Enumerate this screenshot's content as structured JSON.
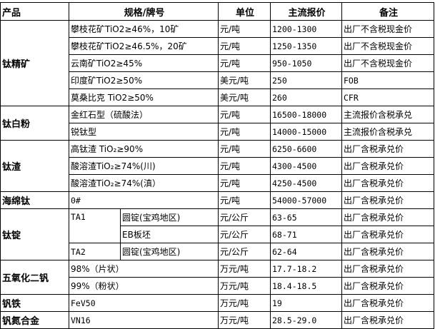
{
  "headers": {
    "product": "产品",
    "spec": "规格/牌号",
    "unit": "单位",
    "price": "主流报价",
    "note": "备注"
  },
  "groups": {
    "titanium_concentrate": {
      "name": "钛精矿",
      "rows": [
        {
          "spec": "攀枝花矿TiO2≥46%，10矿",
          "unit": "元/吨",
          "price": "1200-1300",
          "note": "出厂不含税现金价"
        },
        {
          "spec": "攀枝花矿TiO2≥46.5%，20矿",
          "unit": "元/吨",
          "price": "1250-1350",
          "note": "出厂不含税现金价"
        },
        {
          "spec": "云南矿TiO2≥45%",
          "unit": "元/吨",
          "price": "950-1050",
          "note": "出厂不含税现金价"
        },
        {
          "spec": "印度矿TiO2≥50%",
          "unit": "美元/吨",
          "price": "250",
          "note": "FOB"
        },
        {
          "spec": "莫桑比克 TiO2≥50%",
          "unit": "美元/吨",
          "price": "260",
          "note": "CFR"
        }
      ]
    },
    "titanium_dioxide": {
      "name": "钛白粉",
      "rows": [
        {
          "spec": "金红石型（硫酸法）",
          "unit": "元/吨",
          "price": "16500-18000",
          "note": "主流报价含税承兑"
        },
        {
          "spec": "锐钛型",
          "unit": "元/吨",
          "price": "14000-15000",
          "note": "主流报价含税承兑"
        }
      ]
    },
    "titanium_slag": {
      "name": "钛渣",
      "rows": [
        {
          "spec": "高钛渣 TiO₂≥90%",
          "unit": "元/吨",
          "price": "6250-6600",
          "note": "出厂含税承兑价"
        },
        {
          "spec": "酸溶渣TiO₂≥74%(川)",
          "unit": "元/吨",
          "price": "4300-4500",
          "note": "出厂含税承兑价"
        },
        {
          "spec": "酸溶渣TiO₂≥74%(滇）",
          "unit": "元/吨",
          "price": "4250-4500",
          "note": "出厂含税承兑价"
        }
      ]
    },
    "sponge_titanium": {
      "name": "海绵钛",
      "rows": [
        {
          "spec": "0#",
          "unit": "元/吨",
          "price": "54000-57000",
          "note": "出厂含税承兑价"
        }
      ]
    },
    "titanium_ingot": {
      "name": "钛锭",
      "rows": [
        {
          "grade": "TA1",
          "form": "圆锭(宝鸡地区)",
          "unit": "元/公斤",
          "price": "63-65",
          "note": "出厂含税承兑价"
        },
        {
          "form": "EB板坯",
          "unit": "元/公斤",
          "price": "68-71",
          "note": "出厂含税承兑价"
        },
        {
          "grade": "TA2",
          "form": "圆锭(宝鸡地区)",
          "unit": "元/公斤",
          "price": "62-64",
          "note": "出厂含税承兑价"
        }
      ]
    },
    "vanadium_pentoxide": {
      "name": "五氧化二钒",
      "rows": [
        {
          "spec": "98%（片状）",
          "unit": "万元/吨",
          "price": "17.7-18.2",
          "note": "出厂含税承兑价"
        },
        {
          "spec": "99%（粉状）",
          "unit": "万元/吨",
          "price": "18.4-18.5",
          "note": "出厂含税承兑价"
        }
      ]
    },
    "ferrovanadium": {
      "name": "钒铁",
      "rows": [
        {
          "spec": "FeV50",
          "unit": "万元/吨",
          "price": "19",
          "note": "出厂含税承兑价"
        }
      ]
    },
    "vanadium_nitrogen": {
      "name": "钒氮合金",
      "rows": [
        {
          "spec": "VN16",
          "unit": "万元/吨",
          "price": "28.5-29.0",
          "note": "出厂含税承兑价"
        }
      ]
    }
  }
}
